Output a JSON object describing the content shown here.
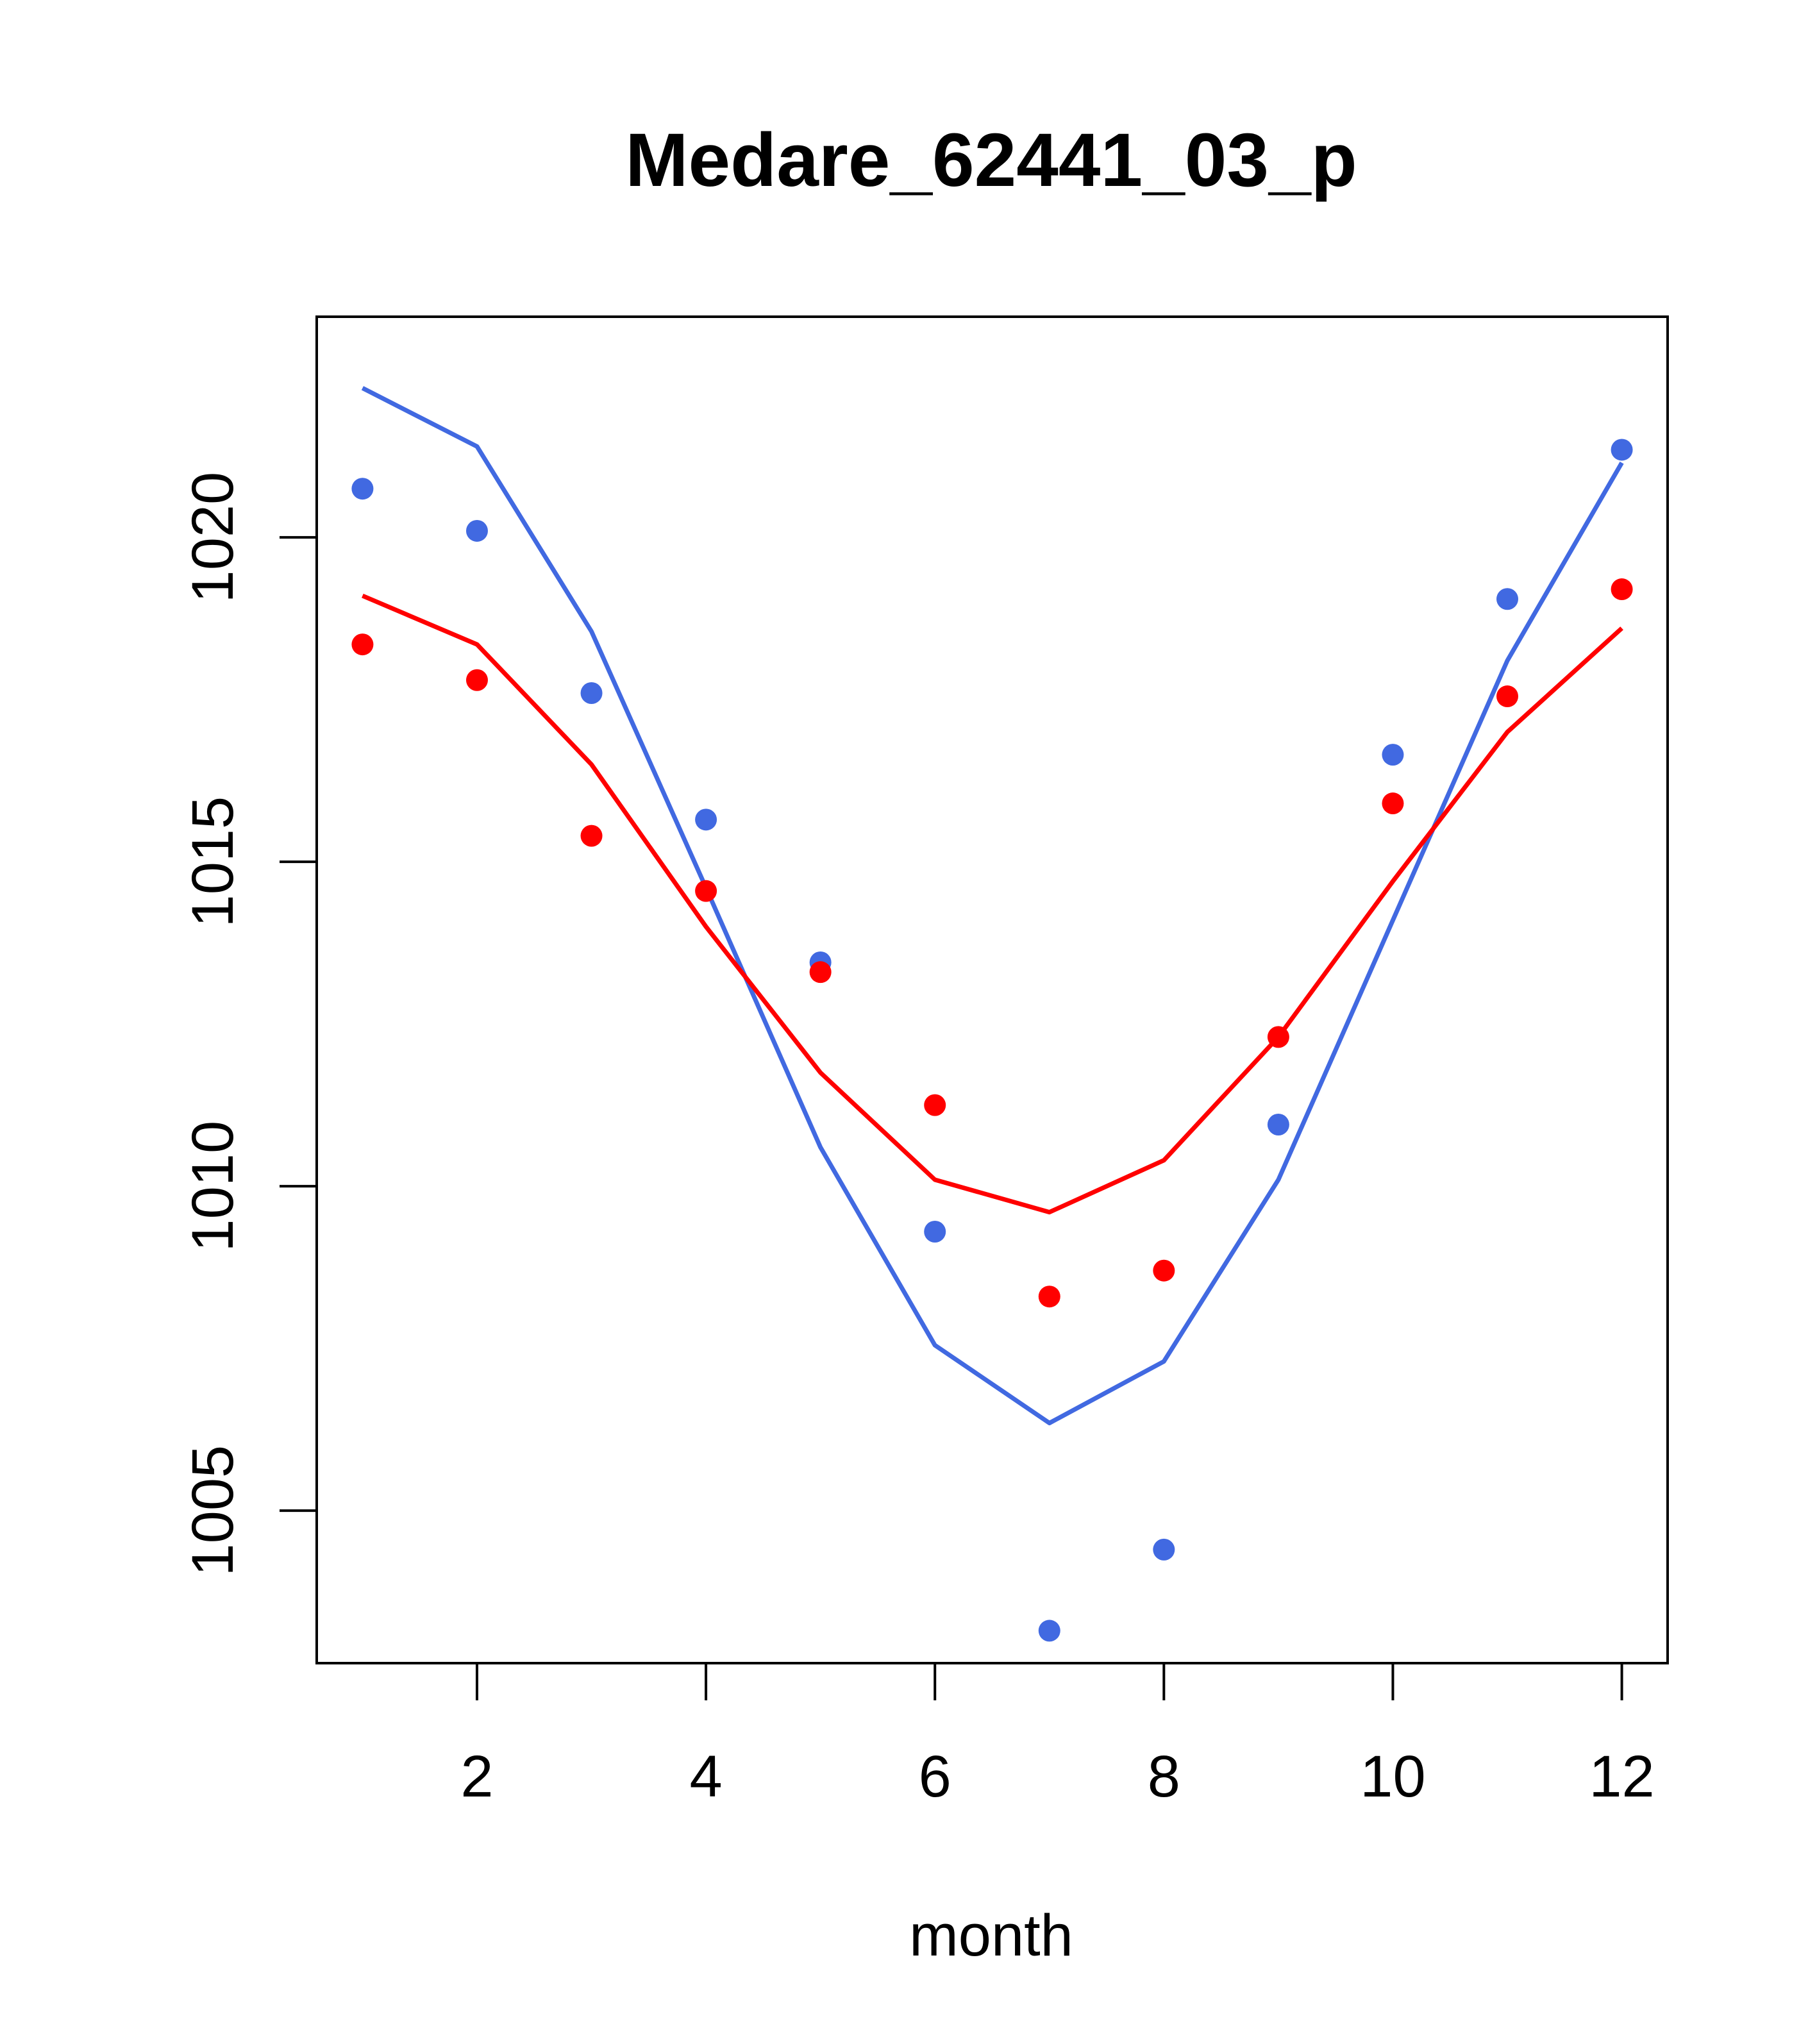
{
  "chart_data": {
    "type": "line",
    "title": "Medare_62441_03_p",
    "xlabel": "month",
    "ylabel": "",
    "xlim": [
      0.6,
      12.4
    ],
    "ylim": [
      1002.65,
      1023.4
    ],
    "x_ticks": [
      2,
      4,
      6,
      8,
      10,
      12
    ],
    "y_ticks": [
      1005,
      1010,
      1015,
      1020
    ],
    "grid": false,
    "legend": "none",
    "x": [
      1,
      2,
      3,
      4,
      5,
      6,
      7,
      8,
      9,
      10,
      11,
      12
    ],
    "series": [
      {
        "kind": "line",
        "color": "#4169e1",
        "values": [
          1022.3,
          1021.4,
          1018.55,
          1014.6,
          1010.6,
          1007.55,
          1006.35,
          1007.3,
          1010.1,
          1014.1,
          1018.1,
          1021.15
        ]
      },
      {
        "kind": "points",
        "color": "#4169e1",
        "values": [
          1020.75,
          1020.1,
          1017.6,
          1015.65,
          1013.45,
          1009.3,
          1003.15,
          1004.4,
          1010.95,
          1016.65,
          1019.05,
          1021.35
        ]
      },
      {
        "kind": "line",
        "color": "#ff0000",
        "values": [
          1019.1,
          1018.35,
          1016.5,
          1014.0,
          1011.75,
          1010.1,
          1009.6,
          1010.4,
          1012.3,
          1014.7,
          1017.0,
          1018.6
        ]
      },
      {
        "kind": "points",
        "color": "#ff0000",
        "values": [
          1018.35,
          1017.8,
          1015.4,
          1014.55,
          1013.3,
          1011.25,
          1008.3,
          1008.7,
          1012.3,
          1015.9,
          1017.55,
          1019.2
        ]
      }
    ]
  }
}
